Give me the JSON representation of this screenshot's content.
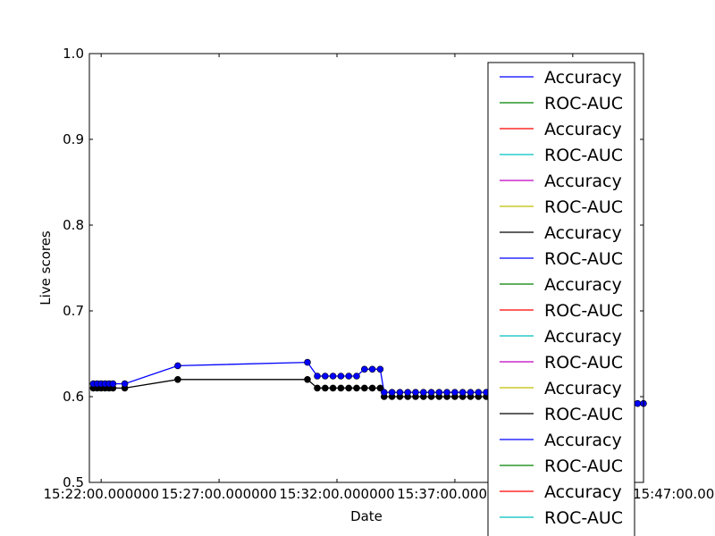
{
  "chart_data": {
    "type": "line",
    "title": "",
    "xlabel": "Date",
    "ylabel": "Live scores",
    "ylim": [
      0.5,
      1.0
    ],
    "yticks": [
      "0.5",
      "0.6",
      "0.7",
      "0.8",
      "0.9",
      "1.0"
    ],
    "xlim": [
      "15:21:30",
      "15:45:00"
    ],
    "xticks": [
      {
        "t": "15:22:00",
        "label": "15:22:00.000000"
      },
      {
        "t": "15:27:00",
        "label": "15:27:00.000000"
      },
      {
        "t": "15:32:00",
        "label": "15:32:00.000000"
      },
      {
        "t": "15:37:00",
        "label": "15:37:00.000000"
      },
      {
        "t": "15:42:00",
        "label": "15:42:00.000000"
      },
      {
        "t": "15:47:00",
        "label": "15:47:00.000000"
      }
    ],
    "grid": false,
    "legend_position": "right",
    "series": [
      {
        "name": "Accuracy",
        "color": "#0000ff",
        "marker": "o",
        "x": [
          "15:21:40",
          "15:21:50",
          "15:22:00",
          "15:22:10",
          "15:22:20",
          "15:22:30",
          "15:23:00",
          "15:25:15",
          "15:30:45",
          "15:31:10",
          "15:31:30",
          "15:31:50",
          "15:32:10",
          "15:32:30",
          "15:32:50",
          "15:33:10",
          "15:33:30",
          "15:33:50",
          "15:34:00",
          "15:34:20",
          "15:34:40",
          "15:35:00",
          "15:35:20",
          "15:35:40",
          "15:36:00",
          "15:36:20",
          "15:36:40",
          "15:37:00",
          "15:37:20",
          "15:37:40",
          "15:38:00",
          "15:38:20",
          "15:38:40",
          "15:39:00",
          "15:39:20",
          "15:39:40",
          "15:40:00",
          "15:40:20",
          "15:40:40",
          "15:41:00",
          "15:41:20",
          "15:41:40",
          "15:42:00",
          "15:42:20",
          "15:42:40",
          "15:43:00",
          "15:43:20"
        ],
        "y": [
          0.615,
          0.615,
          0.615,
          0.615,
          0.615,
          0.615,
          0.615,
          0.636,
          0.64,
          0.624,
          0.624,
          0.624,
          0.624,
          0.624,
          0.624,
          0.632,
          0.632,
          0.632,
          0.605,
          0.605,
          0.605,
          0.605,
          0.605,
          0.605,
          0.605,
          0.605,
          0.605,
          0.605,
          0.605,
          0.605,
          0.605,
          0.605,
          0.605,
          0.605,
          0.605,
          0.605,
          0.605,
          0.605,
          0.605,
          0.605,
          0.605,
          0.605,
          0.605,
          0.591,
          0.591,
          0.591,
          0.584
        ]
      },
      {
        "name": "ROC-AUC",
        "color": "#000000",
        "marker": "o",
        "x": [
          "15:21:40",
          "15:21:50",
          "15:22:00",
          "15:22:10",
          "15:22:20",
          "15:22:30",
          "15:23:00",
          "15:25:15",
          "15:30:45",
          "15:31:10",
          "15:31:30",
          "15:31:50",
          "15:32:10",
          "15:32:30",
          "15:32:50",
          "15:33:10",
          "15:33:30",
          "15:33:50",
          "15:34:00",
          "15:34:20",
          "15:34:40",
          "15:35:00",
          "15:35:20",
          "15:35:40",
          "15:36:00",
          "15:36:20",
          "15:36:40",
          "15:37:00",
          "15:37:20",
          "15:37:40",
          "15:38:00",
          "15:38:20",
          "15:38:40",
          "15:39:00",
          "15:39:20",
          "15:39:40",
          "15:40:00",
          "15:40:20",
          "15:40:40",
          "15:41:00",
          "15:41:20",
          "15:41:40",
          "15:42:00",
          "15:42:20",
          "15:42:40",
          "15:43:00",
          "15:43:20"
        ],
        "y": [
          0.61,
          0.61,
          0.61,
          0.61,
          0.61,
          0.61,
          0.61,
          0.62,
          0.62,
          0.61,
          0.61,
          0.61,
          0.61,
          0.61,
          0.61,
          0.61,
          0.61,
          0.61,
          0.6,
          0.6,
          0.6,
          0.6,
          0.6,
          0.6,
          0.6,
          0.6,
          0.6,
          0.6,
          0.6,
          0.6,
          0.6,
          0.6,
          0.6,
          0.6,
          0.6,
          0.6,
          0.6,
          0.6,
          0.6,
          0.6,
          0.6,
          0.6,
          0.6,
          0.6,
          0.6,
          0.6,
          0.588
        ]
      },
      {
        "name": "Accuracy",
        "color": "#0000ff",
        "marker": "o",
        "x": [
          "15:44:45",
          "15:45:00"
        ],
        "y": [
          0.592,
          0.592
        ]
      }
    ],
    "legend": [
      {
        "label": "Accuracy",
        "color": "#0000ff"
      },
      {
        "label": "ROC-AUC",
        "color": "#008000"
      },
      {
        "label": "Accuracy",
        "color": "#ff0000"
      },
      {
        "label": "ROC-AUC",
        "color": "#00bfbf"
      },
      {
        "label": "Accuracy",
        "color": "#bf00bf"
      },
      {
        "label": "ROC-AUC",
        "color": "#bfbf00"
      },
      {
        "label": "Accuracy",
        "color": "#000000"
      },
      {
        "label": "ROC-AUC",
        "color": "#0000ff"
      },
      {
        "label": "Accuracy",
        "color": "#008000"
      },
      {
        "label": "ROC-AUC",
        "color": "#ff0000"
      },
      {
        "label": "Accuracy",
        "color": "#00bfbf"
      },
      {
        "label": "ROC-AUC",
        "color": "#bf00bf"
      },
      {
        "label": "Accuracy",
        "color": "#bfbf00"
      },
      {
        "label": "ROC-AUC",
        "color": "#000000"
      },
      {
        "label": "Accuracy",
        "color": "#0000ff"
      },
      {
        "label": "ROC-AUC",
        "color": "#008000"
      },
      {
        "label": "Accuracy",
        "color": "#ff0000"
      },
      {
        "label": "ROC-AUC",
        "color": "#00bfbf"
      }
    ]
  }
}
